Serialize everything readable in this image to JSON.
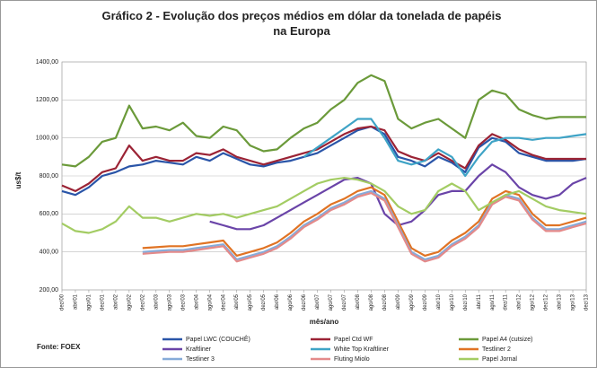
{
  "chart_data": {
    "type": "line",
    "title": "Gráfico 2 - Evolução dos preços médios em dólar da tonelada de papéis na Europa",
    "x_label": "mês/ano",
    "y_label": "us$/t",
    "source": "Fonte: FOEX",
    "categories": [
      "dez/00",
      "abr/01",
      "ago/01",
      "dez/01",
      "abr/02",
      "ago/02",
      "dez/02",
      "abr/03",
      "ago/03",
      "dez/03",
      "abr/04",
      "ago/04",
      "dez/04",
      "abr/05",
      "ago/05",
      "dez/05",
      "abr/06",
      "ago/06",
      "dez/06",
      "abr/07",
      "ago/07",
      "dez/07",
      "abr/08",
      "ago/08",
      "dez/08",
      "abr/09",
      "ago/09",
      "dez/09",
      "abr/10",
      "ago/10",
      "dez/10",
      "abr/11",
      "ago/11",
      "dez/11",
      "abr/12",
      "ago/12",
      "dez/12",
      "abr/13",
      "ago/13",
      "dez/13"
    ],
    "ylim": [
      200,
      1400
    ],
    "yticks": [
      {
        "value": 200,
        "label": "200,00"
      },
      {
        "value": 400,
        "label": "400,00"
      },
      {
        "value": 600,
        "label": "600,00"
      },
      {
        "value": 800,
        "label": "800,00"
      },
      {
        "value": 1000,
        "label": "1000,00"
      },
      {
        "value": 1200,
        "label": "1200,00"
      },
      {
        "value": 1400,
        "label": "1400,00"
      }
    ],
    "grid": true,
    "series": [
      {
        "name": "Papel LWC (COUCHÊ)",
        "color": "#2a55a8",
        "values": [
          720,
          700,
          740,
          800,
          820,
          850,
          860,
          880,
          870,
          860,
          900,
          880,
          920,
          890,
          860,
          850,
          870,
          880,
          900,
          920,
          960,
          1000,
          1040,
          1060,
          1020,
          900,
          880,
          850,
          900,
          870,
          820,
          950,
          1000,
          980,
          920,
          900,
          880,
          880,
          880,
          890
        ]
      },
      {
        "name": "Papel Ctd WF",
        "color": "#9b2335",
        "values": [
          750,
          720,
          760,
          820,
          840,
          960,
          880,
          900,
          880,
          880,
          920,
          910,
          940,
          900,
          880,
          860,
          880,
          900,
          920,
          940,
          980,
          1020,
          1050,
          1060,
          1040,
          930,
          900,
          880,
          920,
          880,
          840,
          960,
          1020,
          990,
          940,
          910,
          890,
          890,
          890,
          890
        ]
      },
      {
        "name": "Papel A4 (cutsize)",
        "color": "#6b9a3a",
        "values": [
          860,
          850,
          900,
          980,
          1000,
          1170,
          1050,
          1060,
          1040,
          1080,
          1010,
          1000,
          1060,
          1040,
          960,
          930,
          940,
          1000,
          1050,
          1080,
          1150,
          1200,
          1290,
          1330,
          1300,
          1100,
          1050,
          1080,
          1100,
          1050,
          1000,
          1200,
          1250,
          1230,
          1150,
          1120,
          1100,
          1110,
          1110,
          1110
        ]
      },
      {
        "name": "Kraftliner",
        "color": "#6a44a8",
        "values": [
          null,
          null,
          null,
          null,
          null,
          null,
          null,
          null,
          null,
          null,
          null,
          560,
          540,
          520,
          520,
          540,
          580,
          620,
          660,
          700,
          740,
          780,
          790,
          760,
          600,
          540,
          560,
          620,
          700,
          720,
          720,
          800,
          860,
          820,
          740,
          700,
          680,
          700,
          760,
          790
        ]
      },
      {
        "name": "White Top Kraftliner",
        "color": "#3ea3c6",
        "values": [
          null,
          null,
          null,
          null,
          null,
          null,
          null,
          null,
          null,
          null,
          null,
          null,
          null,
          null,
          null,
          null,
          null,
          null,
          900,
          950,
          1000,
          1050,
          1100,
          1100,
          1000,
          880,
          860,
          880,
          940,
          900,
          800,
          900,
          980,
          1000,
          1000,
          990,
          1000,
          1000,
          1010,
          1020
        ]
      },
      {
        "name": "Testliner 2",
        "color": "#e07324",
        "values": [
          null,
          null,
          null,
          null,
          null,
          null,
          420,
          425,
          430,
          430,
          440,
          450,
          460,
          380,
          400,
          420,
          450,
          500,
          560,
          600,
          650,
          680,
          720,
          740,
          700,
          560,
          420,
          380,
          400,
          460,
          500,
          560,
          680,
          720,
          700,
          600,
          540,
          540,
          560,
          580
        ]
      },
      {
        "name": "Testliner 3",
        "color": "#86abd9",
        "values": [
          null,
          null,
          null,
          null,
          null,
          null,
          400,
          405,
          410,
          410,
          420,
          430,
          440,
          360,
          380,
          400,
          430,
          480,
          540,
          580,
          630,
          660,
          700,
          720,
          680,
          540,
          400,
          360,
          380,
          440,
          480,
          540,
          660,
          700,
          680,
          580,
          520,
          520,
          540,
          560
        ]
      },
      {
        "name": "Fluting Miolo",
        "color": "#e48a8a",
        "values": [
          null,
          null,
          null,
          null,
          null,
          null,
          390,
          395,
          400,
          400,
          410,
          420,
          430,
          350,
          370,
          390,
          420,
          470,
          530,
          570,
          620,
          650,
          690,
          710,
          670,
          530,
          390,
          350,
          370,
          430,
          470,
          530,
          650,
          690,
          670,
          570,
          510,
          510,
          530,
          550
        ]
      },
      {
        "name": "Papel Jornal",
        "color": "#a3cc63",
        "values": [
          550,
          510,
          500,
          520,
          560,
          640,
          580,
          580,
          560,
          580,
          600,
          590,
          600,
          580,
          600,
          620,
          640,
          680,
          720,
          760,
          780,
          790,
          780,
          760,
          720,
          640,
          600,
          620,
          720,
          760,
          720,
          620,
          660,
          700,
          720,
          680,
          640,
          620,
          610,
          600
        ]
      }
    ]
  }
}
